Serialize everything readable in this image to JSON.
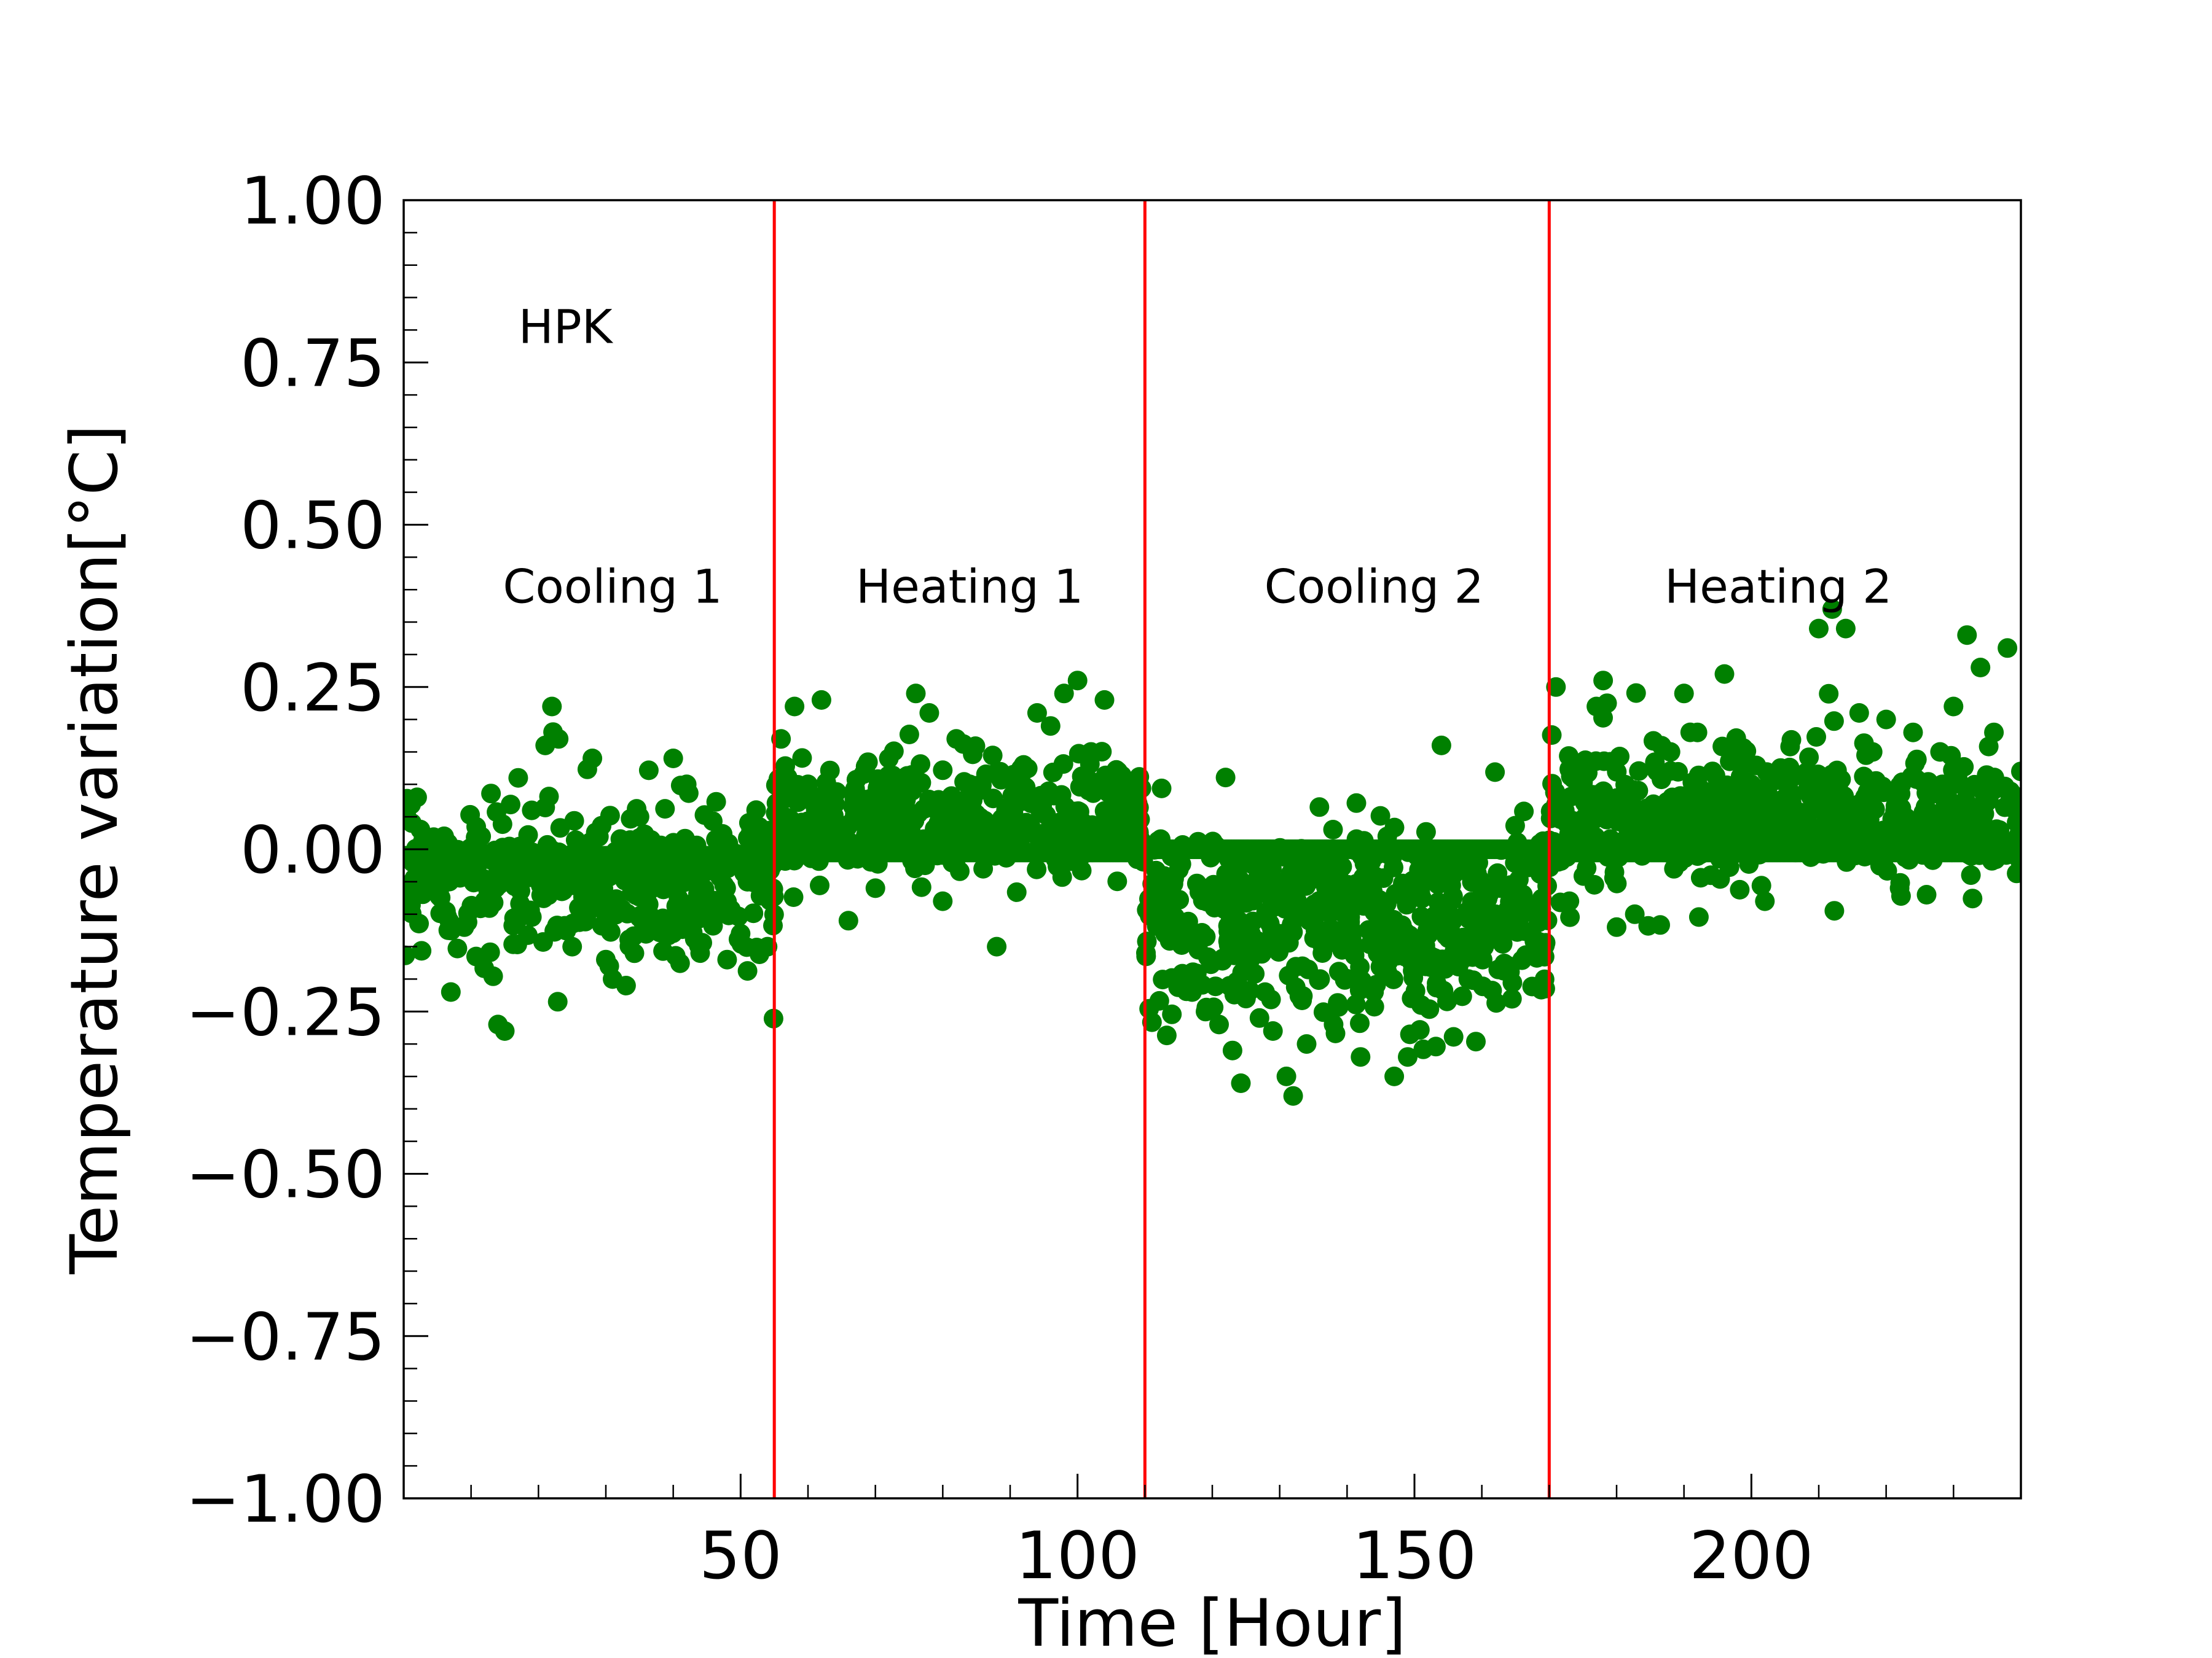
{
  "chart_data": {
    "type": "scatter",
    "title": "",
    "xlabel": "Time [Hour]",
    "ylabel": "Temperature variation[°C]",
    "xlim": [
      0,
      240
    ],
    "ylim": [
      -1.0,
      1.0
    ],
    "x_ticks": [
      50,
      100,
      150,
      200
    ],
    "x_tick_labels": [
      "50",
      "100",
      "150",
      "200"
    ],
    "y_ticks": [
      -1.0,
      -0.75,
      -0.5,
      -0.25,
      0.0,
      0.25,
      0.5,
      0.75,
      1.0
    ],
    "y_tick_labels": [
      "−1.00",
      "−0.75",
      "−0.50",
      "−0.25",
      "0.00",
      "0.25",
      "0.50",
      "0.75",
      "1.00"
    ],
    "grid": false,
    "marker_color": "#008000",
    "line_color": "#ff0000",
    "annotations": [
      {
        "text": "HPK",
        "x": 24,
        "y": 0.78
      },
      {
        "text": "Cooling 1",
        "x": 31,
        "y": 0.38
      },
      {
        "text": "Heating 1",
        "x": 84,
        "y": 0.38
      },
      {
        "text": "Cooling 2",
        "x": 144,
        "y": 0.38
      },
      {
        "text": "Heating 2",
        "x": 204,
        "y": 0.38
      }
    ],
    "vertical_lines": [
      55,
      110,
      170
    ],
    "segments": [
      {
        "label": "Cooling 1",
        "x_range": [
          0,
          55
        ],
        "center": -0.03,
        "spread": 0.09
      },
      {
        "label": "Heating 1",
        "x_range": [
          55,
          110
        ],
        "center": 0.04,
        "spread": 0.07
      },
      {
        "label": "Cooling 2",
        "x_range": [
          110,
          170
        ],
        "center": -0.1,
        "spread": 0.11
      },
      {
        "label": "Heating 2",
        "x_range": [
          170,
          240
        ],
        "center": 0.04,
        "spread": 0.08
      }
    ],
    "series": [
      {
        "type": "scatter",
        "values": [
          [
            2,
            0.08
          ],
          [
            4,
            -0.05
          ],
          [
            6,
            0.02
          ],
          [
            7,
            -0.22
          ],
          [
            9,
            -0.12
          ],
          [
            12,
            -0.08
          ],
          [
            14,
            -0.27
          ],
          [
            15,
            -0.28
          ],
          [
            17,
            0.11
          ],
          [
            19,
            0.06
          ],
          [
            21,
            0.16
          ],
          [
            22,
            0.22
          ],
          [
            23,
            0.17
          ],
          [
            25,
            -0.15
          ],
          [
            26,
            -0.09
          ],
          [
            28,
            0.14
          ],
          [
            30,
            -0.17
          ],
          [
            31,
            -0.2
          ],
          [
            33,
            -0.21
          ],
          [
            35,
            0.05
          ],
          [
            37,
            -0.04
          ],
          [
            40,
            0.14
          ],
          [
            42,
            0.1
          ],
          [
            44,
            -0.16
          ],
          [
            46,
            -0.09
          ],
          [
            48,
            -0.17
          ],
          [
            50,
            -0.13
          ],
          [
            52,
            0.02
          ],
          [
            54,
            -0.15
          ],
          [
            56,
            0.17
          ],
          [
            58,
            0.22
          ],
          [
            60,
            0.1
          ],
          [
            62,
            0.23
          ],
          [
            64,
            0.07
          ],
          [
            66,
            -0.11
          ],
          [
            68,
            0.01
          ],
          [
            70,
            -0.06
          ],
          [
            72,
            0.14
          ],
          [
            74,
            0.09
          ],
          [
            76,
            0.24
          ],
          [
            78,
            0.21
          ],
          [
            80,
            -0.08
          ],
          [
            82,
            0.17
          ],
          [
            84,
            0.1
          ],
          [
            86,
            -0.03
          ],
          [
            88,
            -0.15
          ],
          [
            90,
            0.06
          ],
          [
            92,
            0.13
          ],
          [
            94,
            0.21
          ],
          [
            96,
            0.19
          ],
          [
            98,
            0.24
          ],
          [
            100,
            0.26
          ],
          [
            102,
            0.15
          ],
          [
            104,
            0.23
          ],
          [
            106,
            0.12
          ],
          [
            108,
            0.08
          ],
          [
            111,
            -0.09
          ],
          [
            113,
            -0.13
          ],
          [
            115,
            -0.2
          ],
          [
            117,
            -0.22
          ],
          [
            119,
            -0.25
          ],
          [
            121,
            -0.27
          ],
          [
            123,
            -0.31
          ],
          [
            125,
            -0.23
          ],
          [
            127,
            -0.26
          ],
          [
            129,
            -0.28
          ],
          [
            131,
            -0.35
          ],
          [
            132,
            -0.38
          ],
          [
            134,
            -0.3
          ],
          [
            136,
            -0.2
          ],
          [
            138,
            -0.27
          ],
          [
            140,
            -0.1
          ],
          [
            142,
            -0.32
          ],
          [
            144,
            -0.22
          ],
          [
            146,
            -0.19
          ],
          [
            147,
            -0.35
          ],
          [
            149,
            -0.32
          ],
          [
            151,
            -0.24
          ],
          [
            153,
            -0.05
          ],
          [
            154,
            0.16
          ],
          [
            156,
            -0.14
          ],
          [
            158,
            -0.2
          ],
          [
            160,
            -0.06
          ],
          [
            162,
            -0.1
          ],
          [
            164,
            -0.18
          ],
          [
            166,
            -0.09
          ],
          [
            168,
            -0.14
          ],
          [
            171,
            0.25
          ],
          [
            173,
            -0.08
          ],
          [
            175,
            0.12
          ],
          [
            177,
            0.22
          ],
          [
            178,
            0.26
          ],
          [
            180,
            -0.12
          ],
          [
            182,
            0.06
          ],
          [
            184,
            0.0
          ],
          [
            186,
            0.12
          ],
          [
            188,
            0.15
          ],
          [
            190,
            0.24
          ],
          [
            192,
            0.18
          ],
          [
            194,
            -0.04
          ],
          [
            196,
            0.27
          ],
          [
            198,
            0.08
          ],
          [
            200,
            0.1
          ],
          [
            202,
            -0.08
          ],
          [
            204,
            0.02
          ],
          [
            206,
            0.08
          ],
          [
            208,
            0.11
          ],
          [
            210,
            0.34
          ],
          [
            212,
            0.37
          ],
          [
            214,
            0.34
          ],
          [
            216,
            0.21
          ],
          [
            218,
            0.15
          ],
          [
            220,
            0.2
          ],
          [
            222,
            -0.06
          ],
          [
            224,
            0.18
          ],
          [
            226,
            -0.07
          ],
          [
            228,
            0.15
          ],
          [
            230,
            0.22
          ],
          [
            232,
            0.33
          ],
          [
            234,
            0.28
          ],
          [
            236,
            0.18
          ],
          [
            238,
            0.31
          ],
          [
            240,
            0.12
          ]
        ]
      }
    ]
  }
}
